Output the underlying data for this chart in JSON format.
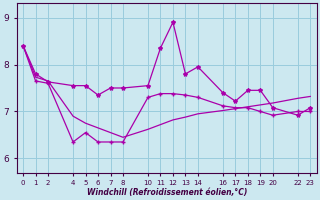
{
  "xlabel": "Windchill (Refroidissement éolien,°C)",
  "bg_color": "#cce8f0",
  "line_color": "#aa00aa",
  "grid_color": "#99ccdd",
  "xlim": [
    -0.5,
    23.5
  ],
  "ylim": [
    5.7,
    9.3
  ],
  "yticks": [
    6,
    7,
    8,
    9
  ],
  "xtick_positions": [
    0,
    1,
    2,
    4,
    5,
    6,
    7,
    8,
    10,
    11,
    12,
    13,
    14,
    16,
    17,
    18,
    19,
    20,
    22,
    23
  ],
  "xtick_labels": [
    "0",
    "1",
    "2",
    "4",
    "5",
    "6",
    "7",
    "8",
    "10",
    "11",
    "12",
    "13",
    "14",
    "16",
    "17",
    "18",
    "19",
    "20",
    "22",
    "23"
  ],
  "line1_x": [
    0,
    1,
    2,
    4,
    5,
    6,
    7,
    8,
    10,
    11,
    12,
    13,
    14,
    16,
    17,
    18,
    19,
    20,
    22,
    23
  ],
  "line1_y": [
    8.4,
    7.8,
    7.63,
    7.55,
    7.55,
    7.35,
    7.5,
    7.5,
    7.55,
    8.35,
    8.9,
    7.8,
    7.95,
    7.4,
    7.22,
    7.45,
    7.45,
    7.08,
    6.92,
    7.08
  ],
  "line2_x": [
    0,
    1,
    2,
    4,
    5,
    6,
    7,
    8,
    10,
    11,
    12,
    13,
    14,
    16,
    17,
    18,
    19,
    20,
    22,
    23
  ],
  "line2_y": [
    8.4,
    7.65,
    7.6,
    6.35,
    6.55,
    6.35,
    6.35,
    6.35,
    7.3,
    7.38,
    7.38,
    7.35,
    7.3,
    7.12,
    7.08,
    7.08,
    7.0,
    6.92,
    7.0,
    7.0
  ],
  "line3_x": [
    0,
    1,
    2,
    4,
    5,
    6,
    7,
    8,
    10,
    11,
    12,
    13,
    14,
    16,
    17,
    18,
    19,
    20,
    22,
    23
  ],
  "line3_y": [
    8.4,
    7.73,
    7.65,
    6.9,
    6.75,
    6.65,
    6.55,
    6.45,
    6.62,
    6.72,
    6.82,
    6.88,
    6.95,
    7.02,
    7.06,
    7.1,
    7.14,
    7.18,
    7.28,
    7.32
  ]
}
